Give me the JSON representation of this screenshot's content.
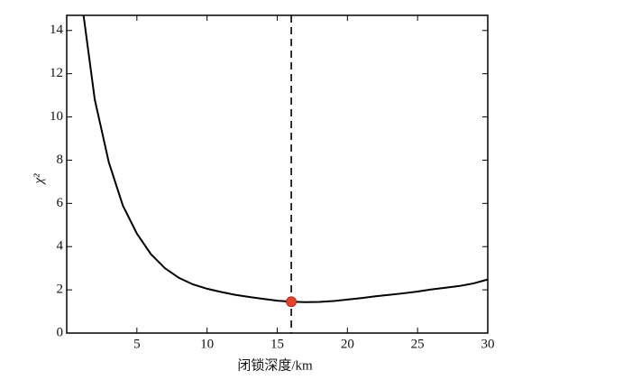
{
  "chart_data": {
    "type": "line",
    "x_label": "闭锁深度/km",
    "y_label": "χ²",
    "x": [
      1.2,
      2,
      3,
      4,
      5,
      6,
      7,
      8,
      9,
      10,
      11,
      12,
      13,
      14,
      15,
      16,
      17,
      18,
      19,
      20,
      21,
      22,
      23,
      24,
      25,
      26,
      27,
      28,
      29,
      30
    ],
    "series": [
      {
        "color": "#000000",
        "values": [
          14.7,
          10.8,
          7.9,
          5.9,
          4.6,
          3.65,
          3.0,
          2.55,
          2.25,
          2.05,
          1.9,
          1.77,
          1.67,
          1.58,
          1.5,
          1.45,
          1.43,
          1.44,
          1.48,
          1.55,
          1.62,
          1.7,
          1.77,
          1.84,
          1.92,
          2.02,
          2.1,
          2.18,
          2.3,
          2.48
        ]
      }
    ],
    "best_fit": {
      "x": 16,
      "y": 1.45,
      "color": "#e8412c"
    },
    "xlim": [
      0,
      30
    ],
    "ylim": [
      0,
      14.7
    ],
    "xticks": [
      5,
      10,
      15,
      20,
      25,
      30
    ],
    "yticks": [
      0,
      2,
      4,
      6,
      8,
      10,
      12,
      14
    ]
  }
}
